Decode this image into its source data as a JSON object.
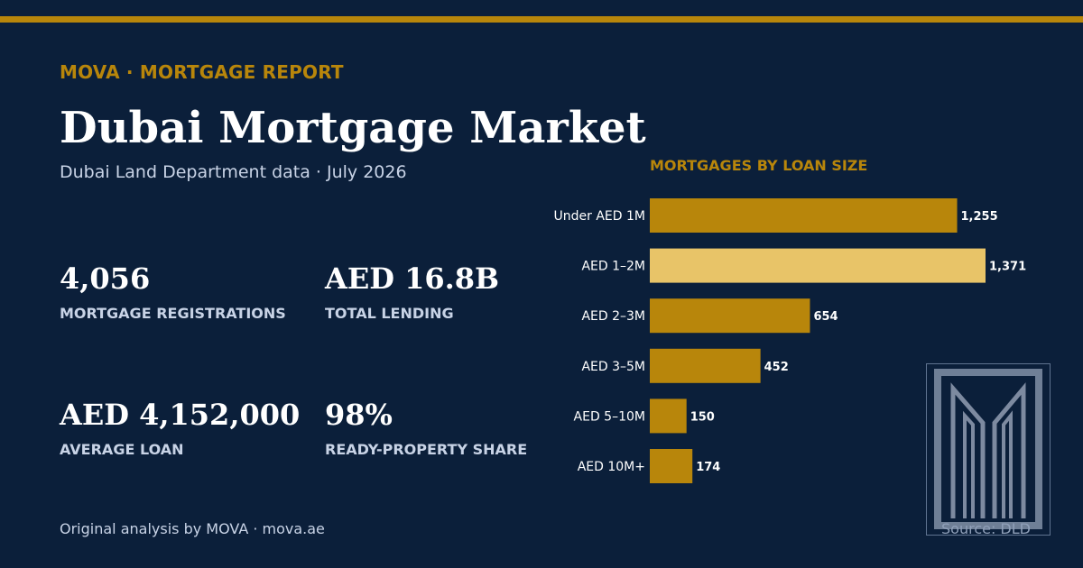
{
  "header": {
    "brand": "MOVA · MORTGAGE REPORT",
    "title": "Dubai Mortgage Market",
    "subtitle": "Dubai Land Department data · July 2026"
  },
  "stats": [
    {
      "value": "4,056",
      "label": "MORTGAGE REGISTRATIONS"
    },
    {
      "value": "AED 16.8B",
      "label": "TOTAL LENDING"
    },
    {
      "value": "AED 4,152,000",
      "label": "AVERAGE LOAN"
    },
    {
      "value": "98%",
      "label": "READY-PROPERTY SHARE"
    }
  ],
  "footer": {
    "credit": "Original analysis by MOVA · mova.ae",
    "source": "Source: DLD"
  },
  "colors": {
    "background": "#0b1f3a",
    "accent": "#b8860b",
    "highlight": "#e8c468"
  },
  "logo": {
    "icon": "mova-logo-icon"
  },
  "chart_data": {
    "type": "bar",
    "orientation": "horizontal",
    "title": "MORTGAGES BY LOAN SIZE",
    "categories": [
      "Under AED 1M",
      "AED 1–2M",
      "AED 2–3M",
      "AED 3–5M",
      "AED 5–10M",
      "AED 10M+"
    ],
    "values": [
      1255,
      1371,
      654,
      452,
      150,
      174
    ],
    "value_labels": [
      "1,255",
      "1,371",
      "654",
      "452",
      "150",
      "174"
    ],
    "highlighted_category": "AED 1–2M",
    "xlim": [
      0,
      1371
    ],
    "grid": false,
    "legend": "none"
  }
}
